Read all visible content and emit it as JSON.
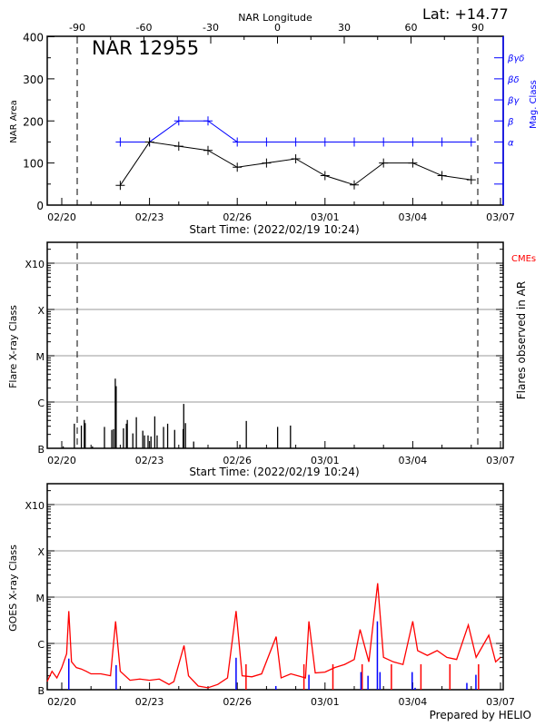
{
  "header": {
    "lat_label": "Lat: +14.77",
    "prepared_by": "Prepared by HELIO"
  },
  "colors": {
    "area": "#000000",
    "mag_class": "#0000ff",
    "goes": "#ff0000",
    "goes_events": "#0000ff",
    "cme": "#ff0000",
    "grid": "#999999"
  },
  "chart_data": [
    {
      "type": "line",
      "title": "NAR 12955",
      "top_axis_label": "NAR Longitude",
      "top_axis_ticks": [
        "-90",
        "-60",
        "-30",
        "0",
        "30",
        "60",
        "90"
      ],
      "top_axis_values": [
        -90,
        -60,
        -30,
        0,
        30,
        60,
        90
      ],
      "limb_longitudes": [
        -90,
        90
      ],
      "xlabel": "Start Time: (2022/02/19 10:24)",
      "x_ticks": [
        "02/20",
        "02/23",
        "02/26",
        "03/01",
        "03/04",
        "03/07"
      ],
      "ylabel": "NAR Area",
      "ylim": [
        0,
        400
      ],
      "y_ticks": [
        "0",
        "100",
        "200",
        "300",
        "400"
      ],
      "y2label": "Mag. Class",
      "y2_ticks": [
        "α",
        "β",
        "βγ",
        "βδ",
        "βγδ"
      ],
      "x": [
        "02/22",
        "02/23",
        "02/24",
        "02/25",
        "02/26",
        "02/27",
        "02/28",
        "03/01",
        "03/02",
        "03/03",
        "03/04",
        "03/05",
        "03/06"
      ],
      "series": [
        {
          "values": [
            47,
            150,
            140,
            130,
            90,
            100,
            110,
            70,
            48,
            100,
            100,
            70,
            60
          ]
        },
        {
          "values": [
            "α",
            "α",
            "β",
            "β",
            "α",
            "α",
            "α",
            "α",
            "α",
            "α",
            "α",
            "α",
            "α"
          ]
        }
      ]
    },
    {
      "type": "bar",
      "xlabel": "Start Time: (2022/02/19 10:24)",
      "x_ticks": [
        "02/20",
        "02/23",
        "02/26",
        "03/01",
        "03/04",
        "03/07"
      ],
      "ylabel": "Flare X-ray Class",
      "y_ticks": [
        "B",
        "C",
        "M",
        "X",
        "X10"
      ],
      "y_scale": "log",
      "y2label": "Flares observed in AR",
      "legend": "CMEs",
      "grid": true,
      "flares": [
        [
          "02/20 01:12",
          "B1.1"
        ],
        [
          "02/20 10:19",
          "B3.4"
        ],
        [
          "02/20 16:05",
          "B3.1"
        ],
        [
          "02/20 18:29",
          "B4.1"
        ],
        [
          "02/20 19:12",
          "B3.5"
        ],
        [
          "02/21 01:12",
          "B1.1"
        ],
        [
          "02/21 11:02",
          "B2.9"
        ],
        [
          "02/21 17:02",
          "B2.5"
        ],
        [
          "02/21 18:29",
          "B2.6"
        ],
        [
          "02/21 19:55",
          "C3.2"
        ],
        [
          "02/21 20:38",
          "C2.2"
        ],
        [
          "02/22 02:38",
          "B2.7"
        ],
        [
          "02/22 05:02",
          "B3.4"
        ],
        [
          "02/22 05:46",
          "B4.1"
        ],
        [
          "02/22 10:19",
          "B2.1"
        ],
        [
          "02/22 13:12",
          "B4.7"
        ],
        [
          "02/22 18:29",
          "B2.4"
        ],
        [
          "02/22 19:55",
          "B1.9"
        ],
        [
          "02/22 22:48",
          "B1.9"
        ],
        [
          "02/23 01:12",
          "B1.8"
        ],
        [
          "02/23 04:19",
          "B4.9"
        ],
        [
          "02/23 06:14",
          "B1.9"
        ],
        [
          "02/23 11:31",
          "B2.9"
        ],
        [
          "02/23 14:53",
          "B3.4"
        ],
        [
          "02/23 20:38",
          "B2.5"
        ],
        [
          "02/24 03:36",
          "B2.6"
        ],
        [
          "02/24 04:05",
          "B9.1"
        ],
        [
          "02/24 05:31",
          "B3.5"
        ],
        [
          "02/24 12:14",
          "B1.4"
        ],
        [
          "02/26 02:10",
          "B1.2"
        ],
        [
          "02/26 07:26",
          "B3.9"
        ],
        [
          "02/27 09:07",
          "B2.9"
        ],
        [
          "02/27 19:41",
          "B3.1"
        ]
      ]
    },
    {
      "type": "line",
      "x_ticks": [
        "02/20",
        "02/23",
        "02/26",
        "03/01",
        "03/04",
        "03/07"
      ],
      "ylabel": "GOES X-ray Class",
      "y_ticks": [
        "B",
        "C",
        "M",
        "X",
        "X10"
      ],
      "y_scale": "log",
      "grid": true,
      "goes_flux": [
        [
          "02/19 12:00",
          "B1.5"
        ],
        [
          "02/19 16:00",
          "B2.5"
        ],
        [
          "02/19 20:00",
          "B1.8"
        ],
        [
          "02/20 00:00",
          "B3.0"
        ],
        [
          "02/20 04:00",
          "B6.0"
        ],
        [
          "02/20 05:46",
          "C5.0"
        ],
        [
          "02/20 08:00",
          "B4.0"
        ],
        [
          "02/20 12:00",
          "B3.0"
        ],
        [
          "02/20 16:00",
          "B2.8"
        ],
        [
          "02/20 20:00",
          "B2.5"
        ],
        [
          "02/21 00:00",
          "B2.2"
        ],
        [
          "02/21 08:00",
          "B2.2"
        ],
        [
          "02/21 16:00",
          "B2.0"
        ],
        [
          "02/21 20:10",
          "C3.0"
        ],
        [
          "02/22 00:00",
          "B2.5"
        ],
        [
          "02/22 08:00",
          "B1.6"
        ],
        [
          "02/22 16:00",
          "B1.7"
        ],
        [
          "02/23 00:00",
          "B1.6"
        ],
        [
          "02/23 08:00",
          "B1.7"
        ],
        [
          "02/23 16:00",
          "B1.3"
        ],
        [
          "02/23 20:00",
          "B1.5"
        ],
        [
          "02/24 04:19",
          "B9.0"
        ],
        [
          "02/24 08:00",
          "B2.0"
        ],
        [
          "02/24 16:00",
          "B1.2"
        ],
        [
          "02/25 00:00",
          "B1.1"
        ],
        [
          "02/25 08:00",
          "B1.3"
        ],
        [
          "02/25 16:00",
          "B1.8"
        ],
        [
          "02/25 23:02",
          "C5.0"
        ],
        [
          "02/26 04:00",
          "B2.0"
        ],
        [
          "02/26 12:00",
          "B1.9"
        ],
        [
          "02/26 20:00",
          "B2.2"
        ],
        [
          "02/27 07:55",
          "C1.4"
        ],
        [
          "02/27 12:00",
          "B1.8"
        ],
        [
          "02/27 20:00",
          "B2.2"
        ],
        [
          "02/28 08:00",
          "B1.8"
        ],
        [
          "02/28 10:48",
          "C3.0"
        ],
        [
          "02/28 16:00",
          "B2.3"
        ],
        [
          "03/01 00:00",
          "B2.4"
        ],
        [
          "03/01 08:00",
          "B3.0"
        ],
        [
          "03/01 16:00",
          "B3.5"
        ],
        [
          "03/02 00:00",
          "B4.5"
        ],
        [
          "03/02 04:48",
          "C2.0"
        ],
        [
          "03/02 12:00",
          "B4.0"
        ],
        [
          "03/02 19:12",
          "M2.0"
        ],
        [
          "03/03 00:00",
          "B5.0"
        ],
        [
          "03/03 08:00",
          "B4.0"
        ],
        [
          "03/03 16:00",
          "B3.5"
        ],
        [
          "03/04 00:00",
          "C3.0"
        ],
        [
          "03/04 04:00",
          "B7.0"
        ],
        [
          "03/04 12:00",
          "B5.5"
        ],
        [
          "03/04 20:00",
          "B7.0"
        ],
        [
          "03/05 04:00",
          "B5.0"
        ],
        [
          "03/05 12:00",
          "B4.5"
        ],
        [
          "03/05 21:36",
          "C2.5"
        ],
        [
          "03/06 04:00",
          "B5.0"
        ],
        [
          "03/06 14:24",
          "C1.5"
        ],
        [
          "03/06 20:00",
          "B4.0"
        ],
        [
          "03/07 00:00",
          "B5.0"
        ]
      ],
      "goes_dropouts": [
        "02/26 07:12",
        "02/28 06:43",
        "03/01 06:29",
        "03/02 06:29",
        "03/03 06:29",
        "03/04 06:43",
        "03/05 06:29",
        "03/06 06:00"
      ],
      "events": [
        [
          "02/20 05:46",
          "B4.7"
        ],
        [
          "02/21 20:38",
          "B3.4"
        ],
        [
          "02/25 23:02",
          "B4.9"
        ],
        [
          "02/27 07:41",
          "B1.2"
        ],
        [
          "02/28 10:48",
          "B2.1"
        ],
        [
          "03/02 05:31",
          "B2.4"
        ],
        [
          "03/02 11:17",
          "B2.0"
        ],
        [
          "03/02 18:58",
          "C3.0"
        ],
        [
          "03/02 21:07",
          "B2.4"
        ],
        [
          "03/03 23:31",
          "B2.4"
        ],
        [
          "03/04 01:55",
          "B1.1"
        ],
        [
          "03/05 20:24",
          "B1.4"
        ],
        [
          "03/06 03:50",
          "B2.1"
        ]
      ]
    }
  ]
}
